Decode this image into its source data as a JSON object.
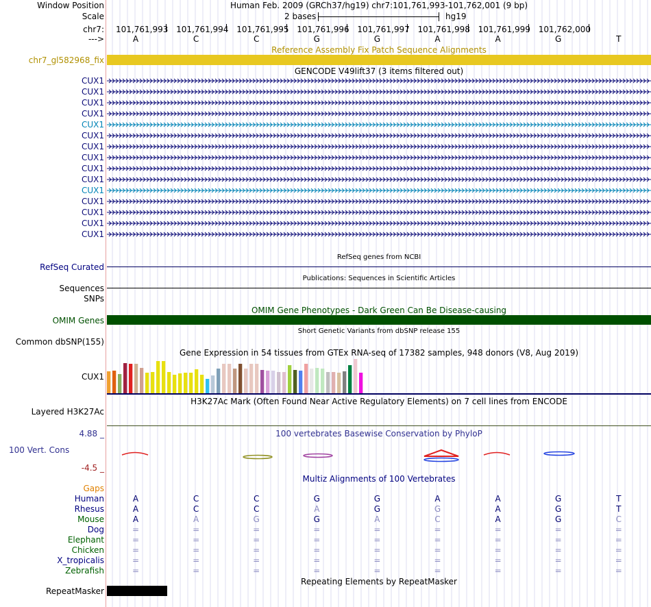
{
  "header": {
    "window_position_label": "Window Position",
    "assembly_text": "Human Feb. 2009 (GRCh37/hg19)   chr7:101,761,993-101,762,001 (9 bp)",
    "scale_label": "Scale",
    "scale_value": "2 bases",
    "scale_db": "hg19",
    "chrom_label": "chr7:",
    "strand_label": "--->",
    "positions": [
      "101,761,993",
      "101,761,994",
      "101,761,995",
      "101,761,996",
      "101,761,997",
      "101,761,998",
      "101,761,999",
      "101,762,000"
    ],
    "bases": [
      "A",
      "C",
      "C",
      "G",
      "G",
      "A",
      "A",
      "G",
      "T"
    ]
  },
  "fix_patch": {
    "title": "Reference Assembly Fix Patch Sequence Alignments",
    "label": "chr7_gl582968_fix",
    "color": "#e8c820"
  },
  "gencode": {
    "title": "GENCODE V49lift37 (3 items filtered out)",
    "items": [
      {
        "label": "CUX1",
        "color": "#0c0c78"
      },
      {
        "label": "CUX1",
        "color": "#0c0c78"
      },
      {
        "label": "CUX1",
        "color": "#0c0c78"
      },
      {
        "label": "CUX1",
        "color": "#0c0c78"
      },
      {
        "label": "CUX1",
        "color": "#0083b6"
      },
      {
        "label": "CUX1",
        "color": "#0c0c78"
      },
      {
        "label": "CUX1",
        "color": "#0c0c78"
      },
      {
        "label": "CUX1",
        "color": "#0c0c78"
      },
      {
        "label": "CUX1",
        "color": "#0c0c78"
      },
      {
        "label": "CUX1",
        "color": "#0c0c78"
      },
      {
        "label": "CUX1",
        "color": "#0083b6"
      },
      {
        "label": "CUX1",
        "color": "#0c0c78"
      },
      {
        "label": "CUX1",
        "color": "#0c0c78"
      },
      {
        "label": "CUX1",
        "color": "#0c0c78"
      },
      {
        "label": "CUX1",
        "color": "#0c0c78"
      }
    ]
  },
  "refseq": {
    "title": "RefSeq genes from NCBI",
    "label": "RefSeq Curated"
  },
  "publications": {
    "title": "Publications: Sequences in Scientific Articles",
    "label_1": "Sequences",
    "label_2": "SNPs"
  },
  "omim": {
    "title": "OMIM Gene Phenotypes - Dark Green Can Be Disease-causing",
    "label": "OMIM Genes",
    "color": "#005000"
  },
  "dbsnp": {
    "title": "Short Genetic Variants from dbSNP release 155",
    "label": "Common dbSNP(155)"
  },
  "gtex": {
    "title": "Gene Expression in 54 tissues from GTEx RNA-seq of 17382 samples, 948 donors (V8, Aug 2019)",
    "label": "CUX1",
    "bars": [
      {
        "value": 0.64,
        "color": "#f0a030"
      },
      {
        "value": 0.66,
        "color": "#e06010"
      },
      {
        "value": 0.56,
        "color": "#88b060"
      },
      {
        "value": 0.88,
        "color": "#a02040"
      },
      {
        "value": 0.86,
        "color": "#e02020"
      },
      {
        "value": 0.86,
        "color": "#d0b090"
      },
      {
        "value": 0.74,
        "color": "#d0a090"
      },
      {
        "value": 0.6,
        "color": "#e8e010"
      },
      {
        "value": 0.62,
        "color": "#e8e010"
      },
      {
        "value": 0.94,
        "color": "#e8e010"
      },
      {
        "value": 0.94,
        "color": "#e8e010"
      },
      {
        "value": 0.62,
        "color": "#e8e010"
      },
      {
        "value": 0.54,
        "color": "#e8e010"
      },
      {
        "value": 0.58,
        "color": "#e8e010"
      },
      {
        "value": 0.6,
        "color": "#e8e010"
      },
      {
        "value": 0.6,
        "color": "#e8e010"
      },
      {
        "value": 0.7,
        "color": "#e8e010"
      },
      {
        "value": 0.54,
        "color": "#e8e010"
      },
      {
        "value": 0.42,
        "color": "#30c0f0"
      },
      {
        "value": 0.52,
        "color": "#b8c8d8"
      },
      {
        "value": 0.72,
        "color": "#80a0b8"
      },
      {
        "value": 0.86,
        "color": "#e8c8c0"
      },
      {
        "value": 0.86,
        "color": "#e8c8c0"
      },
      {
        "value": 0.72,
        "color": "#c09880"
      },
      {
        "value": 0.86,
        "color": "#805030"
      },
      {
        "value": 0.72,
        "color": "#e8c8c0"
      },
      {
        "value": 0.86,
        "color": "#e8c8c0"
      },
      {
        "value": 0.86,
        "color": "#e8c8c0"
      },
      {
        "value": 0.68,
        "color": "#a050a0"
      },
      {
        "value": 0.66,
        "color": "#d8a0d8"
      },
      {
        "value": 0.66,
        "color": "#d8d0e8"
      },
      {
        "value": 0.62,
        "color": "#d0c0d0"
      },
      {
        "value": 0.62,
        "color": "#e0c0d0"
      },
      {
        "value": 0.82,
        "color": "#a0d040"
      },
      {
        "value": 0.68,
        "color": "#506020"
      },
      {
        "value": 0.66,
        "color": "#5080f0"
      },
      {
        "value": 0.86,
        "color": "#f0a0a0"
      },
      {
        "value": 0.72,
        "color": "#e8e8e8"
      },
      {
        "value": 0.74,
        "color": "#c0e8c0"
      },
      {
        "value": 0.72,
        "color": "#c0e8c0"
      },
      {
        "value": 0.62,
        "color": "#c0c0c0"
      },
      {
        "value": 0.62,
        "color": "#e0b0b0"
      },
      {
        "value": 0.6,
        "color": "#d8c0a0"
      },
      {
        "value": 0.64,
        "color": "#808080"
      },
      {
        "value": 0.82,
        "color": "#008040"
      },
      {
        "value": 1.0,
        "color": "#f0c8d0"
      },
      {
        "value": 0.6,
        "color": "#f010e0"
      }
    ]
  },
  "h3k27ac": {
    "title": "H3K27Ac Mark (Often Found Near Active Regulatory Elements) on 7 cell lines from ENCODE",
    "label": "Layered H3K27Ac"
  },
  "phylop": {
    "title": "100 vertebrates Basewise Conservation by PhyloP",
    "label": "100 Vert. Cons",
    "max_label": "4.88 _",
    "min_label": "-4.5 _"
  },
  "multiz": {
    "title": "Multiz Alignments of 100 Vertebrates",
    "gaps_label": "Gaps",
    "species": [
      {
        "name": "Human",
        "color": "#000080",
        "bases": [
          "A",
          "C",
          "C",
          "G",
          "G",
          "A",
          "A",
          "G",
          "T"
        ],
        "dim": [
          false,
          false,
          false,
          false,
          false,
          false,
          false,
          false,
          false
        ]
      },
      {
        "name": "Rhesus",
        "color": "#000080",
        "bases": [
          "A",
          "C",
          "C",
          "A",
          "G",
          "G",
          "A",
          "G",
          "T"
        ],
        "dim": [
          false,
          false,
          false,
          true,
          false,
          true,
          false,
          false,
          false
        ]
      },
      {
        "name": "Mouse",
        "color": "#006000",
        "bases": [
          "A",
          "A",
          "G",
          "G",
          "A",
          "C",
          "A",
          "G",
          "C"
        ],
        "dim": [
          false,
          true,
          true,
          false,
          true,
          true,
          false,
          false,
          true
        ]
      },
      {
        "name": "Dog",
        "color": "#000080",
        "bases": [
          "=",
          "=",
          "=",
          "=",
          "=",
          "=",
          "=",
          "=",
          "="
        ],
        "dim": [
          true,
          true,
          true,
          true,
          true,
          true,
          true,
          true,
          true
        ]
      },
      {
        "name": "Elephant",
        "color": "#006000",
        "bases": [
          "=",
          "=",
          "=",
          "=",
          "=",
          "=",
          "=",
          "=",
          "="
        ],
        "dim": [
          true,
          true,
          true,
          true,
          true,
          true,
          true,
          true,
          true
        ]
      },
      {
        "name": "Chicken",
        "color": "#006000",
        "bases": [
          "=",
          "=",
          "=",
          "=",
          "=",
          "=",
          "=",
          "=",
          "="
        ],
        "dim": [
          true,
          true,
          true,
          true,
          true,
          true,
          true,
          true,
          true
        ]
      },
      {
        "name": "X_tropicalis",
        "color": "#000080",
        "bases": [
          "=",
          "=",
          "=",
          "=",
          "=",
          "=",
          "=",
          "=",
          "="
        ],
        "dim": [
          true,
          true,
          true,
          true,
          true,
          true,
          true,
          true,
          true
        ]
      },
      {
        "name": "Zebrafish",
        "color": "#006000",
        "bases": [
          "=",
          "=",
          "=",
          "=",
          "=",
          "=",
          "=",
          "=",
          "="
        ],
        "dim": [
          true,
          true,
          true,
          true,
          true,
          true,
          true,
          true,
          true
        ]
      }
    ]
  },
  "repeatmasker": {
    "title": "Repeating Elements by RepeatMasker",
    "label": "RepeatMasker"
  }
}
